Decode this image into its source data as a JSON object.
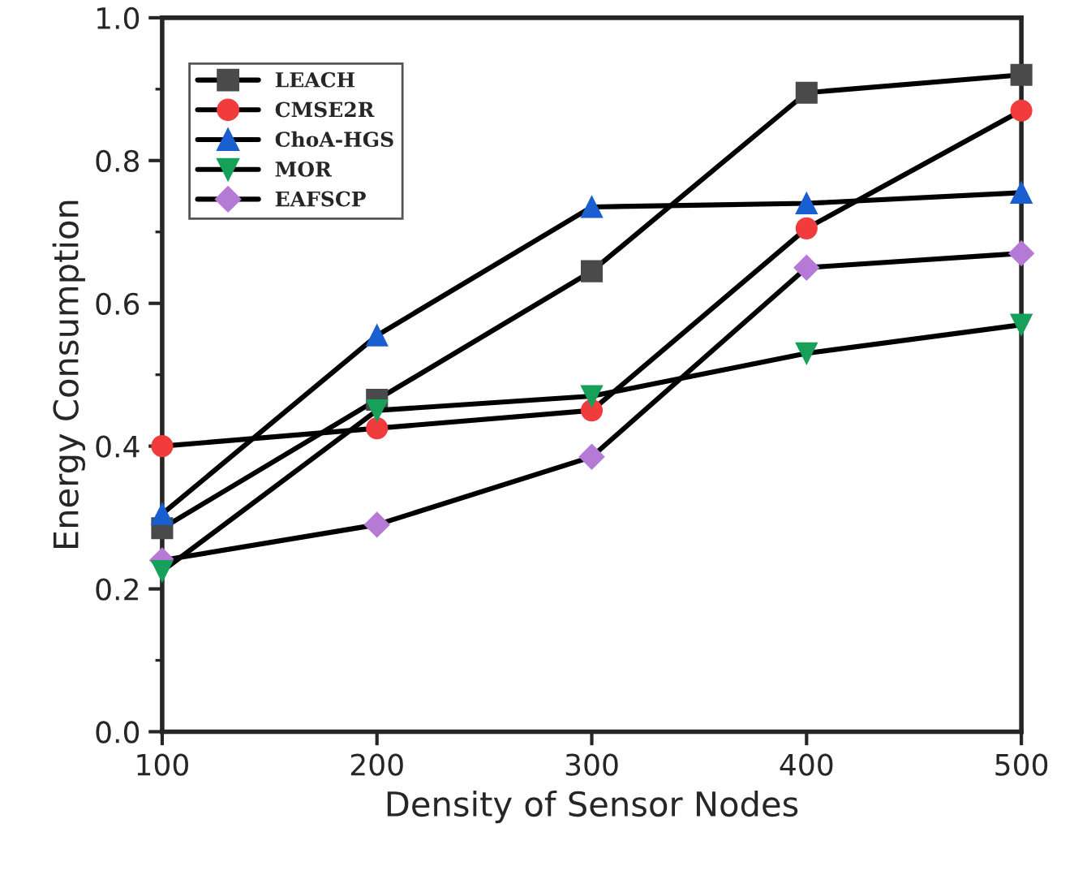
{
  "chart_data": {
    "type": "line",
    "xlabel": "Density of Sensor Nodes",
    "ylabel": "Energy Consumption",
    "x": [
      100,
      200,
      300,
      400,
      500
    ],
    "series": [
      {
        "name": "LEACH",
        "color": "#4a4a4a",
        "marker": "square",
        "values": [
          0.285,
          0.465,
          0.645,
          0.895,
          0.92
        ]
      },
      {
        "name": "CMSE2R",
        "color": "#f03c3c",
        "marker": "circle",
        "values": [
          0.4,
          0.425,
          0.45,
          0.705,
          0.87
        ]
      },
      {
        "name": "ChoA-HGS",
        "color": "#1a5fd0",
        "marker": "triangle",
        "values": [
          0.305,
          0.555,
          0.735,
          0.74,
          0.755
        ]
      },
      {
        "name": "MOR",
        "color": "#17a05a",
        "marker": "triangle_down",
        "values": [
          0.225,
          0.45,
          0.47,
          0.53,
          0.57
        ]
      },
      {
        "name": "EAFSCP",
        "color": "#b57ad6",
        "marker": "diamond",
        "values": [
          0.24,
          0.29,
          0.385,
          0.65,
          0.67
        ]
      }
    ],
    "xlim": [
      100,
      500
    ],
    "xticks": [
      100,
      200,
      300,
      400,
      500
    ],
    "ylim": [
      0.0,
      1.0
    ],
    "yticks": [
      {
        "value": 0.0,
        "label": "0.0"
      },
      {
        "value": 0.2,
        "label": "0.2"
      },
      {
        "value": 0.4,
        "label": "0.4"
      },
      {
        "value": 0.6,
        "label": "0.6"
      },
      {
        "value": 0.8,
        "label": "0.8"
      },
      {
        "value": 1.0,
        "label": "1.0"
      }
    ],
    "grid": false,
    "legend": "top left",
    "line_style": "solid"
  }
}
